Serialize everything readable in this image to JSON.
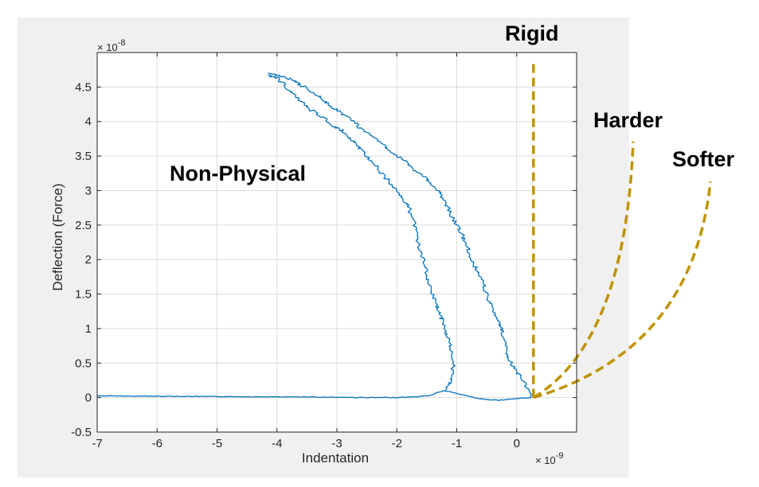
{
  "chart_data": {
    "type": "line",
    "xlabel": "Indentation",
    "ylabel": "Deflection (Force)",
    "x_multiplier": "×10^-9",
    "y_multiplier": "×10^-8",
    "x_exponent_label": "× 10",
    "x_exponent_power": "-9",
    "y_exponent_label": "× 10",
    "y_exponent_power": "-8",
    "xlim": [
      -7,
      1
    ],
    "ylim": [
      -0.5,
      5
    ],
    "xticks": [
      -7,
      -6,
      -5,
      -4,
      -3,
      -2,
      -1,
      0
    ],
    "xtick_labels": [
      "-7",
      "-6",
      "-5",
      "-4",
      "-3",
      "-2",
      "-1",
      "0"
    ],
    "yticks": [
      -0.5,
      0,
      0.5,
      1,
      1.5,
      2,
      2.5,
      3,
      3.5,
      4,
      4.5
    ],
    "ytick_labels": [
      "-0.5",
      "0",
      "0.5",
      "1",
      "1.5",
      "2",
      "2.5",
      "3",
      "3.5",
      "4",
      "4.5"
    ],
    "grid": true,
    "colors": {
      "data": "#0072BD",
      "reference": "#C09300",
      "plot_bg": "#ffffff",
      "figure_bg": "#f0f0f0"
    },
    "series": [
      {
        "style": "solid",
        "x": [
          -7.0,
          -6.0,
          -5.0,
          -4.0,
          -3.0,
          -2.5,
          -2.0,
          -1.7,
          -1.45,
          -1.3,
          -1.2,
          -1.0,
          -0.6,
          -0.3,
          0.05,
          0.25
        ],
        "y": [
          0.025,
          0.02,
          0.015,
          0.01,
          0.005,
          0.0,
          0.0,
          0.01,
          0.03,
          0.08,
          0.1,
          0.06,
          -0.02,
          -0.04,
          -0.01,
          0.0
        ]
      },
      {
        "style": "solid",
        "x": [
          -1.2,
          -1.1,
          -1.05,
          -1.1,
          -1.2,
          -1.3,
          -1.4,
          -1.5,
          -1.55,
          -1.65,
          -1.7,
          -1.8,
          -2.0,
          -2.15,
          -2.3,
          -2.5,
          -2.7,
          -2.9,
          -3.15,
          -3.4,
          -3.6,
          -3.8,
          -3.9,
          -4.0,
          -4.15
        ],
        "y": [
          0.1,
          0.25,
          0.5,
          0.75,
          1.0,
          1.25,
          1.5,
          1.75,
          2.0,
          2.25,
          2.5,
          2.75,
          3.0,
          3.15,
          3.3,
          3.5,
          3.7,
          3.85,
          4.0,
          4.15,
          4.3,
          4.45,
          4.55,
          4.63,
          4.68
        ]
      },
      {
        "style": "solid",
        "x": [
          0.25,
          0.1,
          -0.1,
          -0.2,
          -0.25,
          -0.4,
          -0.5,
          -0.6,
          -0.75,
          -0.85,
          -1.0,
          -1.15,
          -1.3,
          -1.5,
          -1.7,
          -1.9,
          -2.15,
          -2.35,
          -2.6,
          -2.8,
          -3.05,
          -3.3,
          -3.55,
          -3.75,
          -3.95,
          -4.05,
          -4.15
        ],
        "y": [
          0.0,
          0.25,
          0.5,
          0.75,
          1.0,
          1.25,
          1.5,
          1.75,
          2.0,
          2.25,
          2.5,
          2.75,
          3.0,
          3.15,
          3.3,
          3.45,
          3.6,
          3.75,
          3.9,
          4.05,
          4.2,
          4.35,
          4.5,
          4.6,
          4.66,
          4.69,
          4.7
        ]
      },
      {
        "name": "Rigid",
        "style": "dashed",
        "x": [
          0.28,
          0.28
        ],
        "y": [
          0.0,
          4.85
        ]
      }
    ],
    "annotations": [
      "Rigid",
      "Harder",
      "Softer",
      "Non-Physical"
    ]
  }
}
